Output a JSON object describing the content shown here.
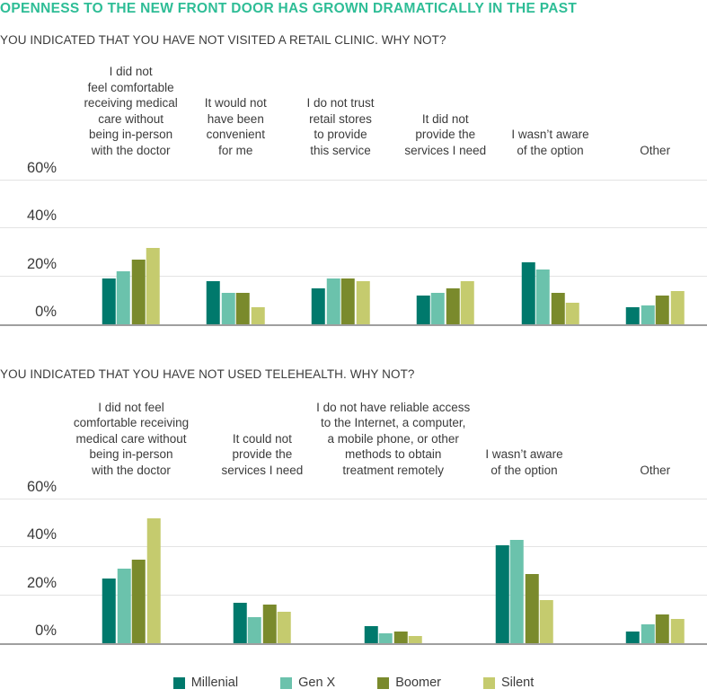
{
  "page": {
    "title": "OPENNESS TO THE NEW FRONT DOOR HAS GROWN DRAMATICALLY IN THE PAST",
    "title_color": "#2EBD96",
    "text_color": "#3b3b3b",
    "gridline_color": "#e3e3e3",
    "axis_color": "#9f9f9f"
  },
  "legend": {
    "items": [
      {
        "label": "Millenial",
        "color": "#00796C"
      },
      {
        "label": "Gen X",
        "color": "#6BC2AC"
      },
      {
        "label": "Boomer",
        "color": "#7A8A2C"
      },
      {
        "label": "Silent",
        "color": "#C5CB6E"
      }
    ]
  },
  "chart_data": [
    {
      "type": "bar",
      "title": "YOU INDICATED THAT YOU HAVE NOT VISITED A RETAIL CLINIC. WHY NOT?",
      "categories": [
        "I did not\nfeel comfortable\nreceiving medical\ncare without\nbeing in-person\nwith the doctor",
        "It would not\nhave been\nconvenient\nfor me",
        "I do not trust\nretail stores\nto provide\nthis service",
        "It did not\nprovide the\nservices I need",
        "I wasn’t aware\nof the option",
        "Other"
      ],
      "series": [
        {
          "name": "Millenial",
          "color": "#00796C",
          "values": [
            19,
            18,
            15,
            12,
            26,
            7
          ]
        },
        {
          "name": "Gen X",
          "color": "#6BC2AC",
          "values": [
            22,
            13,
            19,
            13,
            23,
            8
          ]
        },
        {
          "name": "Boomer",
          "color": "#7A8A2C",
          "values": [
            27,
            13,
            19,
            15,
            13,
            12
          ]
        },
        {
          "name": "Silent",
          "color": "#C5CB6E",
          "values": [
            32,
            7,
            18,
            18,
            9,
            14
          ]
        }
      ],
      "yticks": [
        {
          "label": "0%",
          "value": 0
        },
        {
          "label": "20%",
          "value": 20
        },
        {
          "label": "40%",
          "value": 40
        },
        {
          "label": "60%",
          "value": 60
        }
      ],
      "ylim": [
        0,
        69
      ],
      "unit": "%",
      "grid": true,
      "legend_position": "bottom"
    },
    {
      "type": "bar",
      "title": "YOU INDICATED THAT YOU HAVE NOT USED TELEHEALTH. WHY NOT?",
      "categories": [
        "I did not feel\ncomfortable receiving\nmedical care without\nbeing in-person\nwith the doctor",
        "It could not\nprovide the\nservices I need",
        "I do not have reliable access\nto the Internet, a computer,\na mobile phone, or other\nmethods to obtain\ntreatment remotely",
        "I wasn’t aware\nof the option",
        "Other"
      ],
      "series": [
        {
          "name": "Millenial",
          "color": "#00796C",
          "values": [
            27,
            17,
            7,
            41,
            5
          ]
        },
        {
          "name": "Gen X",
          "color": "#6BC2AC",
          "values": [
            31,
            11,
            4,
            43,
            8
          ]
        },
        {
          "name": "Boomer",
          "color": "#7A8A2C",
          "values": [
            35,
            16,
            5,
            29,
            12
          ]
        },
        {
          "name": "Silent",
          "color": "#C5CB6E",
          "values": [
            52,
            13,
            3,
            18,
            10
          ]
        }
      ],
      "yticks": [
        {
          "label": "0%",
          "value": 0
        },
        {
          "label": "20%",
          "value": 20
        },
        {
          "label": "40%",
          "value": 40
        },
        {
          "label": "60%",
          "value": 60
        }
      ],
      "ylim": [
        0,
        69
      ],
      "unit": "%",
      "grid": true,
      "legend_position": "bottom"
    }
  ]
}
